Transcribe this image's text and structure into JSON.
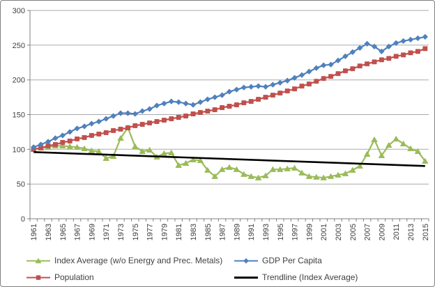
{
  "colors": {
    "green": "#9BBB59",
    "blue": "#4F81BD",
    "red": "#C0504D",
    "black": "#000000",
    "gridline": "#A9A9A9",
    "axis": "#808080",
    "text": "#404040",
    "border": "#7F7F7F",
    "background": "#FFFFFF"
  },
  "chart_data": {
    "type": "line",
    "title": "",
    "xlabel": "",
    "ylabel": "",
    "ylim": [
      0,
      300
    ],
    "y_ticks": [
      0,
      50,
      100,
      150,
      200,
      250,
      300
    ],
    "x_tick_label_step": 2,
    "grid": "horizontal",
    "legend_position": "bottom",
    "x": [
      1961,
      1962,
      1963,
      1964,
      1965,
      1966,
      1967,
      1968,
      1969,
      1970,
      1971,
      1972,
      1973,
      1974,
      1975,
      1976,
      1977,
      1978,
      1979,
      1980,
      1981,
      1982,
      1983,
      1984,
      1985,
      1986,
      1987,
      1988,
      1989,
      1990,
      1991,
      1992,
      1993,
      1994,
      1995,
      1996,
      1997,
      1998,
      1999,
      2000,
      2001,
      2002,
      2003,
      2004,
      2005,
      2006,
      2007,
      2008,
      2009,
      2010,
      2011,
      2012,
      2013,
      2014,
      2015
    ],
    "series": [
      {
        "name": "Index Average (w/o Energy and Prec. Metals)",
        "color": "#9BBB59",
        "marker": "triangle",
        "values": [
          100,
          102,
          103,
          105,
          105,
          104,
          103,
          101,
          98,
          97,
          87,
          90,
          116,
          131,
          104,
          97,
          99,
          89,
          94,
          95,
          77,
          80,
          85,
          84,
          70,
          61,
          71,
          74,
          71,
          64,
          61,
          59,
          62,
          71,
          71,
          72,
          73,
          66,
          61,
          60,
          59,
          61,
          63,
          65,
          70,
          76,
          93,
          114,
          91,
          106,
          115,
          108,
          101,
          97,
          83
        ]
      },
      {
        "name": "GDP Per Capita",
        "color": "#4F81BD",
        "marker": "diamond",
        "values": [
          103,
          107,
          111,
          116,
          120,
          125,
          130,
          133,
          137,
          140,
          144,
          148,
          152,
          152,
          151,
          155,
          158,
          163,
          166,
          169,
          168,
          166,
          164,
          168,
          172,
          175,
          178,
          183,
          186,
          189,
          190,
          191,
          190,
          193,
          196,
          199,
          203,
          207,
          212,
          217,
          221,
          222,
          228,
          234,
          240,
          246,
          252,
          248,
          241,
          248,
          253,
          256,
          258,
          260,
          262
        ]
      },
      {
        "name": "Population",
        "color": "#C0504D",
        "marker": "square",
        "values": [
          100,
          102,
          105,
          107,
          110,
          112,
          115,
          117,
          120,
          122,
          124,
          127,
          129,
          131,
          134,
          136,
          138,
          140,
          142,
          144,
          146,
          148,
          151,
          153,
          155,
          157,
          160,
          162,
          164,
          167,
          169,
          172,
          175,
          178,
          181,
          184,
          187,
          191,
          194,
          198,
          202,
          205,
          209,
          213,
          216,
          220,
          223,
          226,
          229,
          231,
          234,
          236,
          239,
          241,
          245
        ]
      },
      {
        "name": "Trendline (Index Average)",
        "color": "#000000",
        "marker": "none",
        "trend": true,
        "trend_x": [
          1961,
          2015
        ],
        "values": [
          96,
          76
        ]
      }
    ]
  }
}
